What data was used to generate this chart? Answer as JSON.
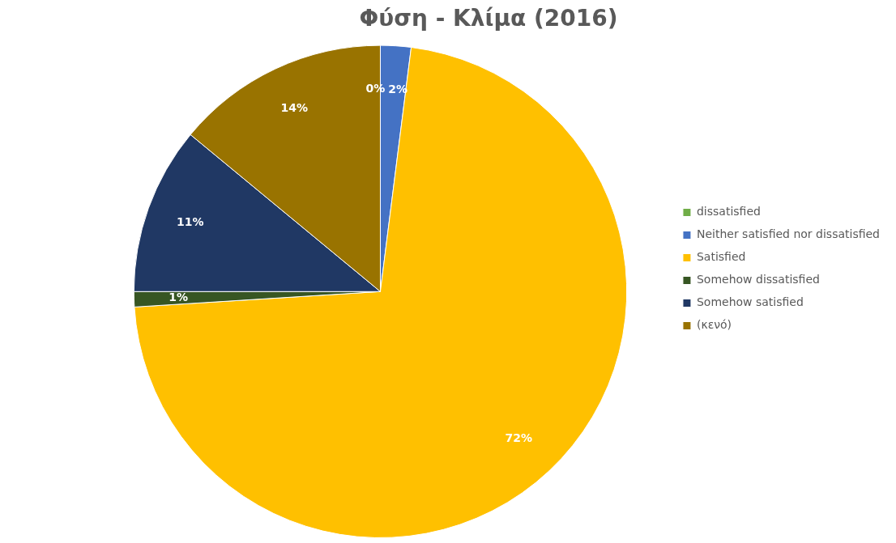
{
  "chart_data": {
    "type": "pie",
    "title": "Φύση - Κλίμα (2016)",
    "categories": [
      "dissatisfied",
      "Neither satisfied nor dissatisfied",
      "Satisfied",
      "Somehow dissatisfied",
      "Somehow satisfied",
      "(κενό)"
    ],
    "values": [
      0,
      2,
      72,
      1,
      11,
      14
    ],
    "colors": [
      "#70ad47",
      "#4472c4",
      "#ffc000",
      "#375623",
      "#203864",
      "#997300"
    ],
    "value_labels": [
      "0%",
      "2%",
      "72%",
      "1%",
      "11%",
      "14%"
    ],
    "legend": "right"
  }
}
